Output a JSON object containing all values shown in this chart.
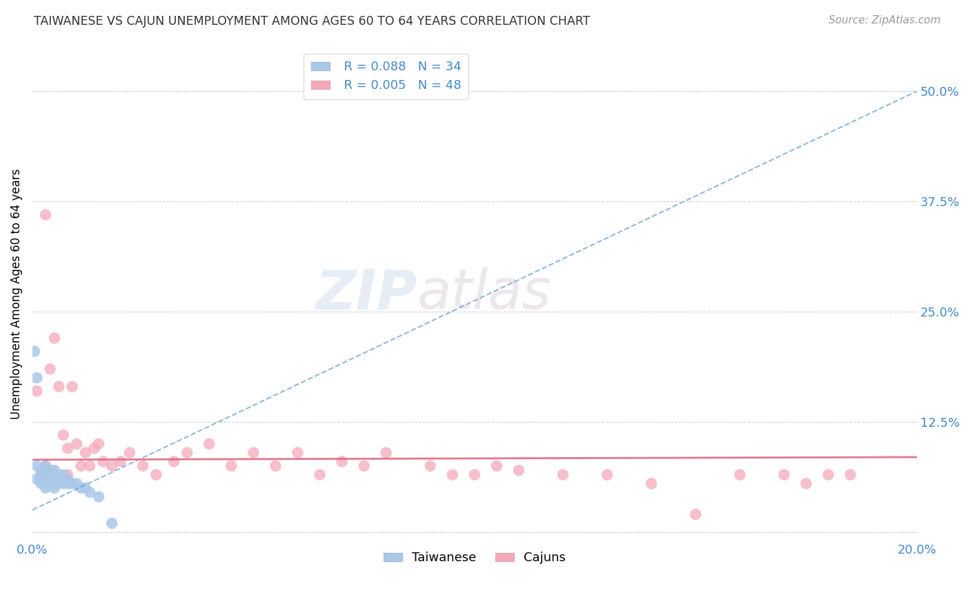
{
  "title": "TAIWANESE VS CAJUN UNEMPLOYMENT AMONG AGES 60 TO 64 YEARS CORRELATION CHART",
  "source": "Source: ZipAtlas.com",
  "ylabel": "Unemployment Among Ages 60 to 64 years",
  "xlim": [
    0.0,
    0.2
  ],
  "ylim": [
    -0.01,
    0.55
  ],
  "yticks": [
    0.0,
    0.125,
    0.25,
    0.375,
    0.5
  ],
  "ytick_labels": [
    "",
    "12.5%",
    "25.0%",
    "37.5%",
    "50.0%"
  ],
  "xticks": [
    0.0,
    0.05,
    0.1,
    0.15,
    0.2
  ],
  "xtick_labels": [
    "0.0%",
    "",
    "",
    "",
    "20.0%"
  ],
  "watermark_zip": "ZIP",
  "watermark_atlas": "atlas",
  "legend_taiwanese_R": "R = 0.088",
  "legend_taiwanese_N": "N = 34",
  "legend_cajun_R": "R = 0.005",
  "legend_cajun_N": "N = 48",
  "taiwanese_color": "#aac8e8",
  "cajun_color": "#f5a8bc",
  "taiwanese_line_color": "#6699cc",
  "cajun_line_color": "#e06880",
  "axis_color": "#4488cc",
  "grid_color": "#cccccc",
  "taiwanese_scatter_x": [
    0.0005,
    0.001,
    0.001,
    0.001,
    0.002,
    0.002,
    0.002,
    0.002,
    0.003,
    0.003,
    0.003,
    0.003,
    0.003,
    0.004,
    0.004,
    0.004,
    0.004,
    0.005,
    0.005,
    0.005,
    0.005,
    0.006,
    0.006,
    0.007,
    0.007,
    0.008,
    0.008,
    0.009,
    0.01,
    0.011,
    0.012,
    0.013,
    0.015,
    0.018
  ],
  "taiwanese_scatter_y": [
    0.205,
    0.175,
    0.075,
    0.06,
    0.07,
    0.065,
    0.06,
    0.055,
    0.075,
    0.065,
    0.06,
    0.055,
    0.05,
    0.07,
    0.065,
    0.06,
    0.055,
    0.07,
    0.065,
    0.055,
    0.05,
    0.065,
    0.055,
    0.065,
    0.055,
    0.06,
    0.055,
    0.055,
    0.055,
    0.05,
    0.05,
    0.045,
    0.04,
    0.01
  ],
  "cajun_scatter_x": [
    0.001,
    0.002,
    0.003,
    0.004,
    0.005,
    0.006,
    0.007,
    0.008,
    0.009,
    0.01,
    0.011,
    0.012,
    0.013,
    0.014,
    0.015,
    0.016,
    0.018,
    0.02,
    0.022,
    0.025,
    0.028,
    0.032,
    0.035,
    0.04,
    0.045,
    0.05,
    0.055,
    0.06,
    0.065,
    0.07,
    0.075,
    0.08,
    0.09,
    0.095,
    0.1,
    0.105,
    0.11,
    0.12,
    0.13,
    0.14,
    0.15,
    0.16,
    0.17,
    0.175,
    0.18,
    0.185,
    0.003,
    0.008
  ],
  "cajun_scatter_y": [
    0.16,
    0.065,
    0.36,
    0.185,
    0.22,
    0.165,
    0.11,
    0.095,
    0.165,
    0.1,
    0.075,
    0.09,
    0.075,
    0.095,
    0.1,
    0.08,
    0.075,
    0.08,
    0.09,
    0.075,
    0.065,
    0.08,
    0.09,
    0.1,
    0.075,
    0.09,
    0.075,
    0.09,
    0.065,
    0.08,
    0.075,
    0.09,
    0.075,
    0.065,
    0.065,
    0.075,
    0.07,
    0.065,
    0.065,
    0.055,
    0.02,
    0.065,
    0.065,
    0.055,
    0.065,
    0.065,
    0.075,
    0.065
  ],
  "taiwanese_trend_x0": 0.0,
  "taiwanese_trend_x1": 0.2,
  "taiwanese_trend_y0": 0.025,
  "taiwanese_trend_y1": 0.5,
  "cajun_trend_x0": 0.0,
  "cajun_trend_x1": 0.2,
  "cajun_trend_y0": 0.082,
  "cajun_trend_y1": 0.085
}
